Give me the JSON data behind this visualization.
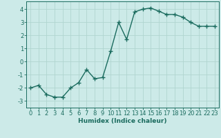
{
  "x": [
    0,
    1,
    2,
    3,
    4,
    5,
    6,
    7,
    8,
    9,
    10,
    11,
    12,
    13,
    14,
    15,
    16,
    17,
    18,
    19,
    20,
    21,
    22,
    23
  ],
  "y": [
    -2.0,
    -1.8,
    -2.5,
    -2.7,
    -2.7,
    -2.0,
    -1.6,
    -0.6,
    -1.3,
    -1.2,
    0.8,
    3.0,
    1.7,
    3.8,
    4.0,
    4.1,
    3.85,
    3.6,
    3.6,
    3.4,
    3.0,
    2.7,
    2.7,
    2.7
  ],
  "line_color": "#1a6b5e",
  "marker_color": "#1a6b5e",
  "bg_color": "#cceae8",
  "grid_color": "#b0d5d0",
  "axis_color": "#1a6b5e",
  "xlabel": "Humidex (Indice chaleur)",
  "xlim": [
    -0.5,
    23.5
  ],
  "ylim": [
    -3.5,
    4.6
  ],
  "yticks": [
    -3,
    -2,
    -1,
    0,
    1,
    2,
    3,
    4
  ],
  "xticks": [
    0,
    1,
    2,
    3,
    4,
    5,
    6,
    7,
    8,
    9,
    10,
    11,
    12,
    13,
    14,
    15,
    16,
    17,
    18,
    19,
    20,
    21,
    22,
    23
  ],
  "xlabel_fontsize": 6.5,
  "tick_fontsize": 6.0,
  "line_width": 1.0,
  "marker_size": 2.5
}
